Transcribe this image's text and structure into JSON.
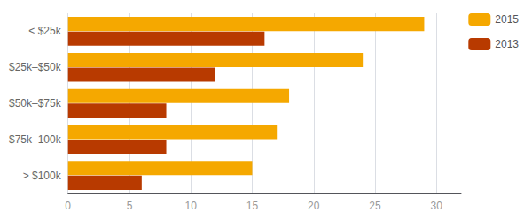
{
  "chart_data": {
    "type": "bar",
    "orientation": "horizontal",
    "categories": [
      "> $100k",
      "$75k–100k",
      "$50k–$75k",
      "$25k–$50k",
      "< $25k"
    ],
    "series": [
      {
        "name": "2015",
        "color": "#F5A800",
        "values": [
          15,
          17,
          18,
          24,
          29
        ]
      },
      {
        "name": "2013",
        "color": "#B83A00",
        "values": [
          6,
          8,
          8,
          12,
          16
        ]
      }
    ],
    "xlim": [
      0,
      32
    ],
    "xticks": [
      0,
      5,
      10,
      15,
      20,
      25,
      30
    ],
    "grid": true,
    "legend": "right"
  }
}
